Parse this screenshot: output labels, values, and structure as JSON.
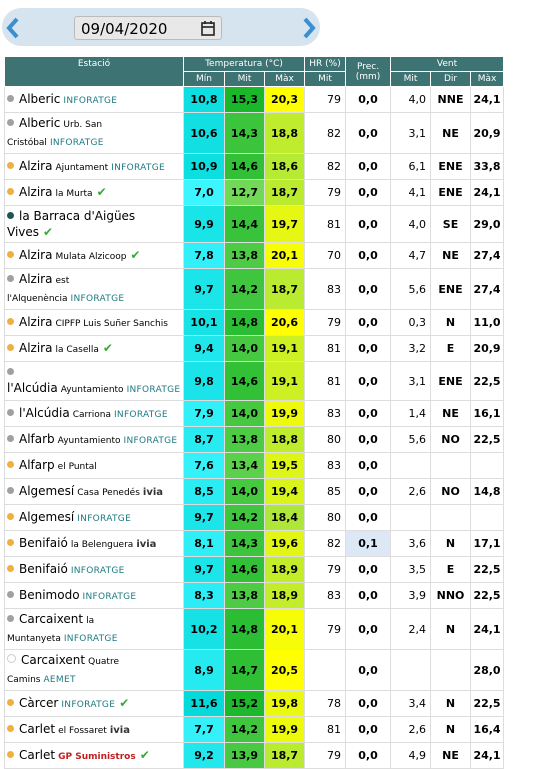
{
  "date": "09/04/2020",
  "table": {
    "headers": {
      "station": "Estació",
      "temperature": "Temperatura (°C)",
      "humidity": "HR (%)",
      "precipitation": "Prec. (mm)",
      "wind": "Vent",
      "temp_min": "Mín",
      "temp_mid": "Mit",
      "temp_max": "Màx",
      "hum_mid": "Mit",
      "wind_mid": "Mit",
      "wind_dir": "Dir",
      "wind_max": "Màx"
    },
    "rows": [
      {
        "station": "Alberic",
        "location": null,
        "network": "INFORATGE",
        "check": false,
        "dot": "#a0a0a0",
        "cells": [
          "10,8",
          "15,3",
          "20,3",
          "79",
          "0,0",
          "4,0",
          "NNE",
          "24,1"
        ]
      },
      {
        "station": "Alberic",
        "location": "Urb. San Cristóbal",
        "network": "INFORATGE",
        "check": false,
        "dot": "#a0a0a0",
        "cells": [
          "10,6",
          "14,3",
          "18,8",
          "82",
          "0,0",
          "3,1",
          "NE",
          "20,9"
        ]
      },
      {
        "station": "Alzira",
        "location": "Ajuntament",
        "network": "INFORATGE",
        "check": false,
        "dot": "#f0b040",
        "cells": [
          "10,9",
          "14,6",
          "18,6",
          "82",
          "0,0",
          "6,1",
          "ENE",
          "33,8"
        ]
      },
      {
        "station": "Alzira",
        "location": "la Murta",
        "network": null,
        "check": true,
        "dot": "#f0b040",
        "cells": [
          "7,0",
          "12,7",
          "18,7",
          "79",
          "0,0",
          "4,1",
          "ENE",
          "24,1"
        ]
      },
      {
        "station": "la Barraca d'Aigües Vives",
        "location": null,
        "network": null,
        "check": true,
        "dot": "#1d5555",
        "cells": [
          "9,9",
          "14,4",
          "19,7",
          "81",
          "0,0",
          "4,0",
          "SE",
          "29,0"
        ]
      },
      {
        "station": "Alzira",
        "location": "Mulata Alzicoop",
        "network": null,
        "check": true,
        "dot": "#f0b040",
        "cells": [
          "7,8",
          "13,8",
          "20,1",
          "70",
          "0,0",
          "4,7",
          "NE",
          "27,4"
        ]
      },
      {
        "station": "Alzira",
        "location": "est l'Alquenència",
        "network": "INFORATGE",
        "check": false,
        "dot": "#a0a0a0",
        "cells": [
          "9,7",
          "14,2",
          "18,7",
          "83",
          "0,0",
          "5,6",
          "ENE",
          "27,4"
        ]
      },
      {
        "station": "Alzira",
        "location": "CIPFP Luis Suñer Sanchis",
        "network": null,
        "check": false,
        "dot": "#f0b040",
        "cells": [
          "10,1",
          "14,8",
          "20,6",
          "79",
          "0,0",
          "0,3",
          "N",
          "11,0"
        ]
      },
      {
        "station": "Alzira",
        "location": "la Casella",
        "network": null,
        "check": true,
        "dot": "#f0b040",
        "cells": [
          "9,4",
          "14,0",
          "19,1",
          "81",
          "0,0",
          "3,2",
          "E",
          "20,9"
        ]
      },
      {
        "station": "l'Alcúdia",
        "location": "Ayuntamiento",
        "network": "INFORATGE",
        "check": false,
        "dot": "#a0a0a0",
        "cells": [
          "9,8",
          "14,6",
          "19,1",
          "81",
          "0,0",
          "3,1",
          "ENE",
          "22,5"
        ]
      },
      {
        "station": "l'Alcúdia",
        "location": "Carriona",
        "network": "INFORATGE",
        "check": false,
        "dot": "#a0a0a0",
        "cells": [
          "7,9",
          "14,0",
          "19,9",
          "83",
          "0,0",
          "1,4",
          "NE",
          "16,1"
        ]
      },
      {
        "station": "Alfarb",
        "location": "Ayuntamiento",
        "network": "INFORATGE",
        "check": false,
        "dot": "#a0a0a0",
        "cells": [
          "8,7",
          "13,8",
          "18,8",
          "80",
          "0,0",
          "5,6",
          "NO",
          "22,5"
        ]
      },
      {
        "station": "Alfarp",
        "location": "el Puntal",
        "network": null,
        "check": false,
        "dot": "#f0b040",
        "cells": [
          "7,6",
          "13,4",
          "19,5",
          "83",
          "0,0",
          null,
          null,
          null
        ]
      },
      {
        "station": "Algemesí",
        "location": "Casa Penedés",
        "network": "ivia",
        "check": false,
        "dot": "#a0a0a0",
        "cells": [
          "8,5",
          "14,0",
          "19,4",
          "85",
          "0,0",
          "2,6",
          "NO",
          "14,8"
        ]
      },
      {
        "station": "Algemesí",
        "location": null,
        "network": "INFORATGE",
        "check": false,
        "dot": "#f0b040",
        "cells": [
          "9,7",
          "14,2",
          "18,4",
          "80",
          "0,0",
          null,
          null,
          null
        ]
      },
      {
        "station": "Benifaió",
        "location": "la Belenguera",
        "network": "ivia",
        "check": false,
        "dot": "#f0b040",
        "cells": [
          "8,1",
          "14,3",
          "19,6",
          "82",
          "0,1",
          "3,6",
          "N",
          "17,1"
        ]
      },
      {
        "station": "Benifaió",
        "location": null,
        "network": "INFORATGE",
        "check": false,
        "dot": "#f0b040",
        "cells": [
          "9,7",
          "14,6",
          "18,9",
          "79",
          "0,0",
          "3,5",
          "E",
          "22,5"
        ]
      },
      {
        "station": "Benimodo",
        "location": null,
        "network": "INFORATGE",
        "check": false,
        "dot": "#a0a0a0",
        "cells": [
          "8,3",
          "13,8",
          "18,9",
          "83",
          "0,0",
          "3,9",
          "NNO",
          "22,5"
        ]
      },
      {
        "station": "Carcaixent",
        "location": "la Muntanyeta",
        "network": "INFORATGE",
        "check": false,
        "dot": "#a0a0a0",
        "cells": [
          "10,2",
          "14,8",
          "20,1",
          "79",
          "0,0",
          "2,4",
          "N",
          "24,1"
        ]
      },
      {
        "station": "Carcaixent",
        "location": "Quatre Camins",
        "network": "AEMET",
        "check": false,
        "dot": "#ffffff",
        "cells": [
          "8,9",
          "14,7",
          "20,5",
          null,
          "0,0",
          null,
          null,
          "28,0"
        ]
      },
      {
        "station": "Càrcer",
        "location": null,
        "network": "INFORATGE",
        "check": true,
        "dot": "#f0b040",
        "cells": [
          "11,6",
          "15,2",
          "19,8",
          "78",
          "0,0",
          "3,4",
          "N",
          "22,5"
        ]
      },
      {
        "station": "Carlet",
        "location": "el Fossaret",
        "network": "ivia",
        "check": false,
        "dot": "#f0b040",
        "cells": [
          "7,7",
          "14,2",
          "19,9",
          "81",
          "0,0",
          "2,6",
          "N",
          "16,4"
        ]
      },
      {
        "station": "Carlet",
        "location": null,
        "network": "GP Suministros",
        "check": true,
        "dot": "#f0b040",
        "cells": [
          "9,2",
          "13,9",
          "18,7",
          "79",
          "0,0",
          "4,9",
          "NE",
          "24,1"
        ]
      }
    ]
  }
}
